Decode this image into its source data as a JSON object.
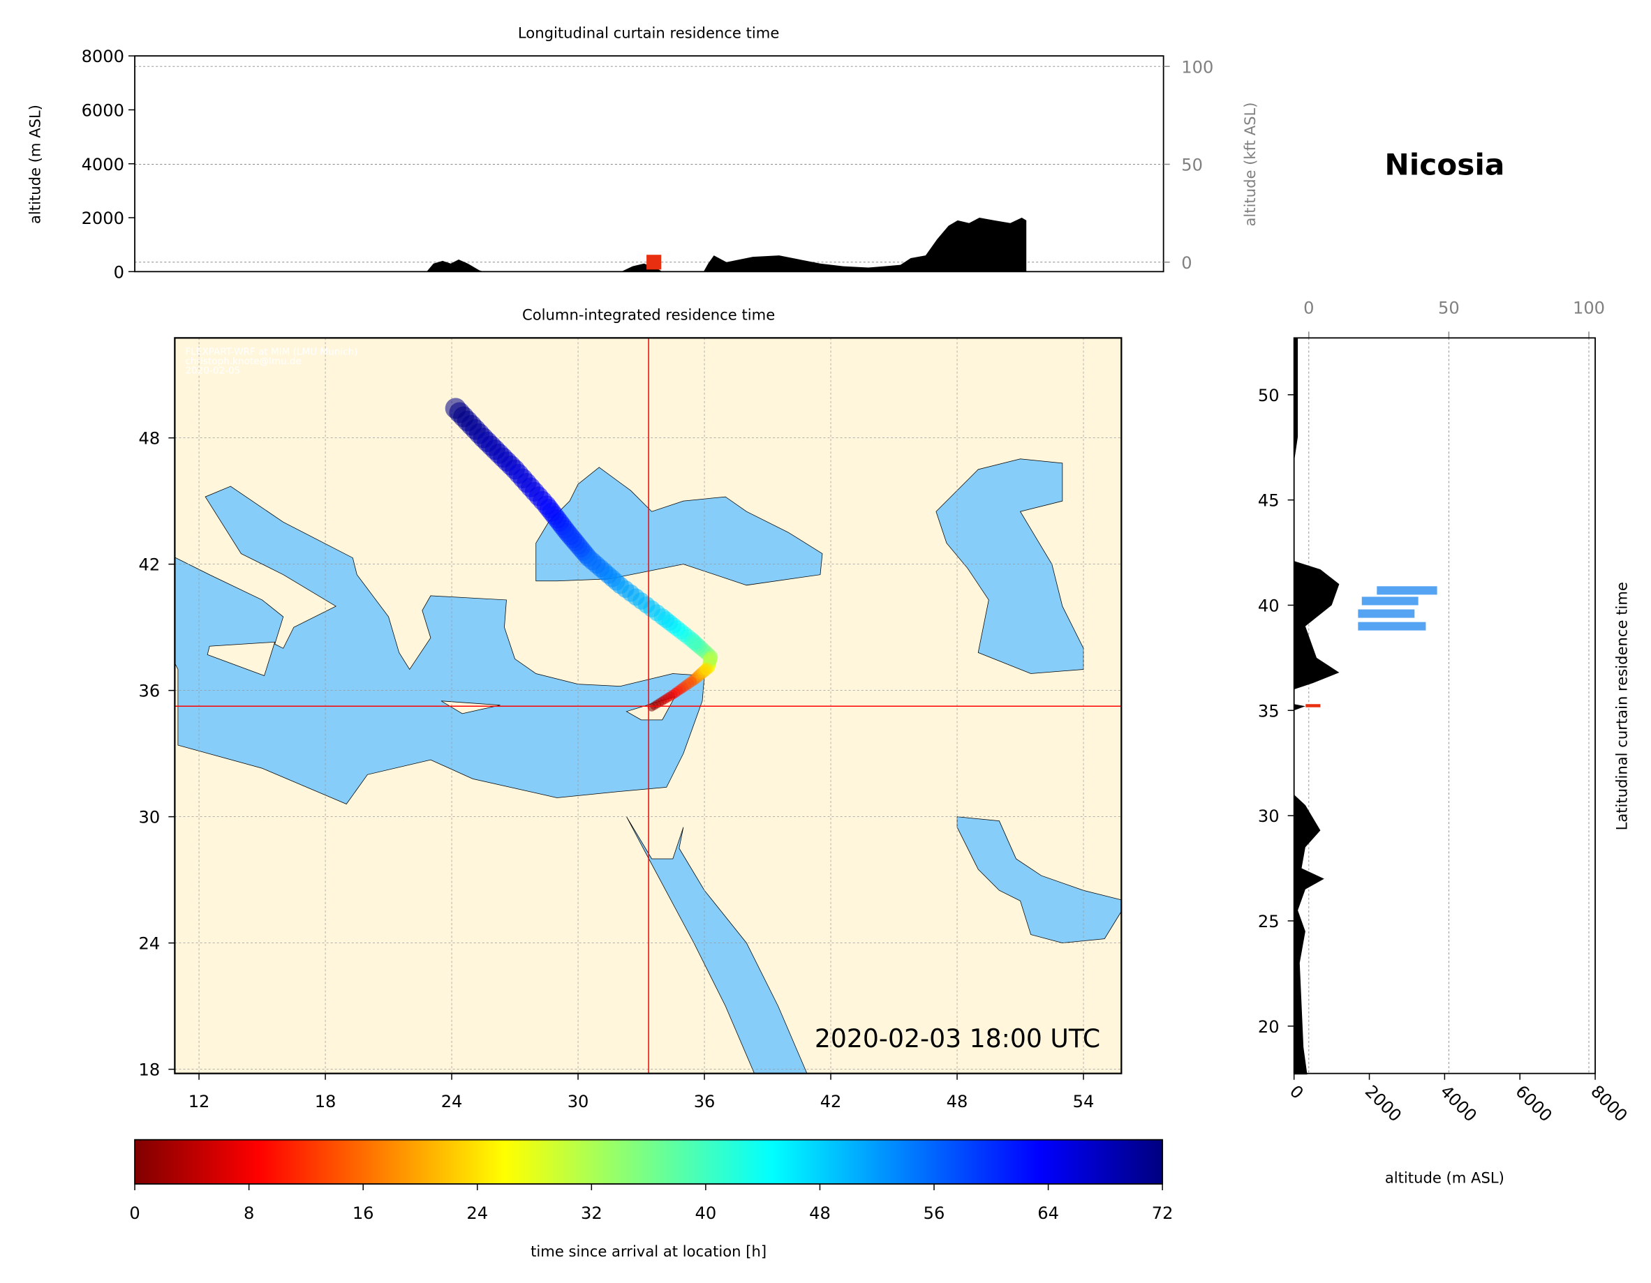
{
  "chart_data": [
    {
      "type": "area",
      "title": "Longitudinal curtain residence time",
      "ylabel": "altitude (m ASL)",
      "ylabel_right": "altitude (kft ASL)",
      "ylim": [
        0,
        8000
      ],
      "yticks": [
        0,
        2000,
        4000,
        6000,
        8000
      ],
      "yticks_right": [
        0,
        50,
        100
      ],
      "grid": true,
      "terrain": {
        "lon": [
          23.6,
          23.9,
          24.3,
          24.65,
          25.0,
          25.4,
          25.9,
          26.1,
          32.1,
          32.6,
          33.1,
          33.7,
          33.9,
          35.7,
          35.9,
          36.15,
          36.7,
          37.85,
          39.0,
          39.9,
          40.8,
          41.8,
          42.9,
          43.6,
          44.3,
          44.75,
          45.4,
          45.9,
          46.4,
          46.8,
          47.3,
          47.75,
          48.4,
          49.1,
          49.6,
          49.8
        ],
        "alt": [
          0,
          300,
          400,
          300,
          450,
          300,
          50,
          0,
          0,
          200,
          300,
          100,
          0,
          0,
          300,
          600,
          350,
          550,
          600,
          450,
          300,
          200,
          150,
          200,
          250,
          500,
          600,
          1200,
          1700,
          1900,
          1800,
          2000,
          1900,
          1800,
          2000,
          1900
        ]
      }
    },
    {
      "type": "heatmap",
      "title": "Column-integrated residence time",
      "xticks": [
        12,
        18,
        24,
        30,
        36,
        42,
        48,
        54
      ],
      "yticks": [
        18,
        24,
        30,
        36,
        42,
        48
      ],
      "xlim": [
        10.85,
        55.8
      ],
      "ylim": [
        17.8,
        52.75
      ],
      "location": {
        "name": "Nicosia",
        "lon": 33.35,
        "lat": 35.25
      },
      "timestamp": "2020-02-03 18:00 UTC",
      "watermark": [
        "FLEXPART-WRF at MIM (LMU Munich)",
        "christoph.knote@lmu.de",
        "2020-02-05"
      ],
      "plume": {
        "lon": [
          33.5,
          34.5,
          35.5,
          36.2,
          36.3,
          35.4,
          34,
          32,
          30.5,
          29.5,
          28.5,
          27,
          25.5,
          24
        ],
        "lat": [
          35.2,
          35.8,
          36.5,
          37.1,
          37.6,
          38.4,
          39.5,
          41,
          42.3,
          43.5,
          44.8,
          46.5,
          48,
          49.6
        ],
        "hours": [
          0,
          8,
          16,
          26,
          34,
          42,
          48,
          52,
          56,
          60,
          63,
          66,
          69,
          72
        ]
      }
    },
    {
      "type": "area",
      "title": "Latitudinal curtain residence time",
      "xlabel": "altitude (m ASL)",
      "xticks": [
        0,
        2000,
        4000,
        6000,
        8000
      ],
      "xticks_top": [
        0,
        50,
        100
      ],
      "yticks": [
        20,
        25,
        30,
        35,
        40,
        45,
        50
      ],
      "xlim": [
        0,
        8000
      ],
      "terrain": {
        "lat": [
          17.7,
          19,
          21,
          23,
          24.5,
          25.5,
          26.5,
          27,
          27.5,
          28.5,
          29.3,
          30.5,
          31,
          31.2,
          35.0,
          35.2,
          35.3,
          35.5,
          36,
          36.3,
          36.8,
          37.5,
          39,
          40,
          41,
          41.7,
          42.1,
          46.8,
          48,
          52.7
        ],
        "alt": [
          350,
          250,
          200,
          150,
          300,
          100,
          300,
          800,
          200,
          300,
          700,
          300,
          0,
          0,
          0,
          300,
          0,
          0,
          0,
          500,
          1200,
          600,
          300,
          1000,
          1200,
          700,
          0,
          0,
          100,
          100
        ]
      },
      "residence": [
        {
          "lat": 40.7,
          "alt0": 2200,
          "alt1": 3800
        },
        {
          "lat": 40.2,
          "alt0": 1800,
          "alt1": 3300
        },
        {
          "lat": 39.6,
          "alt0": 1700,
          "alt1": 3200
        },
        {
          "lat": 39.0,
          "alt0": 1700,
          "alt1": 3500
        }
      ]
    },
    {
      "type": "colorbar",
      "label": "time since arrival at location [h]",
      "ticks": [
        0,
        8,
        16,
        24,
        32,
        40,
        48,
        56,
        64,
        72
      ],
      "range": [
        0,
        72
      ]
    }
  ],
  "colors": {
    "land": "#fff6dc",
    "sea": "#87cdf9",
    "crosshair": "#ff0000"
  }
}
